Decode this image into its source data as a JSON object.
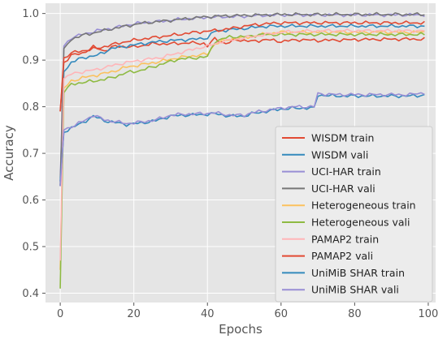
{
  "chart_data": {
    "type": "line",
    "title": "",
    "xlabel": "Epochs",
    "ylabel": "Accuracy",
    "xlim": [
      -4,
      102
    ],
    "ylim": [
      0.38,
      1.022
    ],
    "xticks": [
      "0",
      "20",
      "40",
      "60",
      "80",
      "100"
    ],
    "yticks": [
      "0.4",
      "0.5",
      "0.6",
      "0.7",
      "0.8",
      "0.9",
      "1.0"
    ],
    "grid": true,
    "legend_position": "lower-right",
    "series": [
      {
        "name": "WISDM train",
        "color": "#e24a33",
        "knots": [
          [
            0,
            0.79
          ],
          [
            1,
            0.895
          ],
          [
            3,
            0.91
          ],
          [
            6,
            0.915
          ],
          [
            9,
            0.928
          ],
          [
            12,
            0.92
          ],
          [
            15,
            0.93
          ],
          [
            20,
            0.928
          ],
          [
            25,
            0.935
          ],
          [
            30,
            0.935
          ],
          [
            35,
            0.937
          ],
          [
            39,
            0.936
          ],
          [
            40,
            0.93
          ],
          [
            42,
            0.946
          ],
          [
            45,
            0.935
          ],
          [
            48,
            0.944
          ],
          [
            52,
            0.94
          ],
          [
            56,
            0.944
          ],
          [
            60,
            0.94
          ],
          [
            65,
            0.944
          ],
          [
            70,
            0.942
          ],
          [
            80,
            0.944
          ],
          [
            90,
            0.945
          ],
          [
            99,
            0.945
          ]
        ]
      },
      {
        "name": "WISDM vali",
        "color": "#348abd",
        "knots": [
          [
            0,
            0.63
          ],
          [
            1,
            0.875
          ],
          [
            3,
            0.895
          ],
          [
            6,
            0.905
          ],
          [
            10,
            0.91
          ],
          [
            14,
            0.925
          ],
          [
            18,
            0.93
          ],
          [
            22,
            0.935
          ],
          [
            27,
            0.94
          ],
          [
            32,
            0.943
          ],
          [
            37,
            0.945
          ],
          [
            40,
            0.948
          ],
          [
            42,
            0.962
          ],
          [
            46,
            0.965
          ],
          [
            50,
            0.968
          ],
          [
            55,
            0.972
          ],
          [
            60,
            0.973
          ],
          [
            70,
            0.973
          ],
          [
            80,
            0.973
          ],
          [
            90,
            0.973
          ],
          [
            99,
            0.973
          ]
        ]
      },
      {
        "name": "UCI-HAR train",
        "color": "#988ed5",
        "knots": [
          [
            0,
            0.64
          ],
          [
            1,
            0.93
          ],
          [
            3,
            0.948
          ],
          [
            6,
            0.955
          ],
          [
            10,
            0.963
          ],
          [
            14,
            0.968
          ],
          [
            18,
            0.975
          ],
          [
            22,
            0.98
          ],
          [
            27,
            0.983
          ],
          [
            32,
            0.987
          ],
          [
            37,
            0.99
          ],
          [
            40,
            0.992
          ],
          [
            45,
            0.993
          ],
          [
            50,
            0.994
          ],
          [
            55,
            0.996
          ],
          [
            60,
            0.997
          ],
          [
            70,
            0.997
          ],
          [
            80,
            0.997
          ],
          [
            90,
            0.997
          ],
          [
            99,
            0.997
          ]
        ]
      },
      {
        "name": "UCI-HAR vali",
        "color": "#777777",
        "knots": [
          [
            0,
            0.63
          ],
          [
            1,
            0.925
          ],
          [
            3,
            0.945
          ],
          [
            6,
            0.953
          ],
          [
            10,
            0.96
          ],
          [
            14,
            0.967
          ],
          [
            18,
            0.973
          ],
          [
            22,
            0.979
          ],
          [
            27,
            0.983
          ],
          [
            32,
            0.987
          ],
          [
            37,
            0.991
          ],
          [
            40,
            0.993
          ],
          [
            45,
            0.995
          ],
          [
            50,
            0.996
          ],
          [
            55,
            0.997
          ],
          [
            60,
            0.998
          ],
          [
            70,
            0.998
          ],
          [
            80,
            0.998
          ],
          [
            90,
            0.998
          ],
          [
            99,
            0.998
          ]
        ]
      },
      {
        "name": "Heterogeneous train",
        "color": "#fbc15e",
        "knots": [
          [
            0,
            0.45
          ],
          [
            1,
            0.84
          ],
          [
            3,
            0.855
          ],
          [
            6,
            0.862
          ],
          [
            10,
            0.868
          ],
          [
            14,
            0.875
          ],
          [
            18,
            0.885
          ],
          [
            22,
            0.89
          ],
          [
            27,
            0.897
          ],
          [
            32,
            0.905
          ],
          [
            37,
            0.91
          ],
          [
            40,
            0.913
          ],
          [
            42,
            0.935
          ],
          [
            46,
            0.945
          ],
          [
            50,
            0.948
          ],
          [
            55,
            0.955
          ],
          [
            60,
            0.96
          ],
          [
            70,
            0.96
          ],
          [
            80,
            0.96
          ],
          [
            90,
            0.96
          ],
          [
            99,
            0.96
          ]
        ]
      },
      {
        "name": "Heterogeneous vali",
        "color": "#8eba42",
        "knots": [
          [
            0,
            0.41
          ],
          [
            1,
            0.83
          ],
          [
            3,
            0.848
          ],
          [
            6,
            0.852
          ],
          [
            10,
            0.856
          ],
          [
            14,
            0.862
          ],
          [
            18,
            0.873
          ],
          [
            22,
            0.878
          ],
          [
            27,
            0.89
          ],
          [
            32,
            0.902
          ],
          [
            37,
            0.905
          ],
          [
            40,
            0.907
          ],
          [
            42,
            0.94
          ],
          [
            46,
            0.95
          ],
          [
            50,
            0.95
          ],
          [
            55,
            0.955
          ],
          [
            60,
            0.955
          ],
          [
            70,
            0.955
          ],
          [
            80,
            0.955
          ],
          [
            90,
            0.955
          ],
          [
            99,
            0.955
          ]
        ]
      },
      {
        "name": "PAMAP2 train",
        "color": "#ffb5b8",
        "knots": [
          [
            0,
            0.47
          ],
          [
            1,
            0.86
          ],
          [
            3,
            0.87
          ],
          [
            6,
            0.875
          ],
          [
            10,
            0.88
          ],
          [
            14,
            0.888
          ],
          [
            18,
            0.895
          ],
          [
            22,
            0.9
          ],
          [
            27,
            0.905
          ],
          [
            32,
            0.915
          ],
          [
            37,
            0.925
          ],
          [
            40,
            0.93
          ],
          [
            44,
            0.94
          ],
          [
            48,
            0.945
          ],
          [
            52,
            0.95
          ],
          [
            56,
            0.955
          ],
          [
            60,
            0.96
          ],
          [
            70,
            0.963
          ],
          [
            80,
            0.963
          ],
          [
            90,
            0.963
          ],
          [
            99,
            0.963
          ]
        ]
      },
      {
        "name": "PAMAP2 vali",
        "color": "#e24a33",
        "knots": [
          [
            0,
            0.79
          ],
          [
            1,
            0.905
          ],
          [
            3,
            0.915
          ],
          [
            6,
            0.92
          ],
          [
            10,
            0.925
          ],
          [
            14,
            0.933
          ],
          [
            18,
            0.94
          ],
          [
            22,
            0.945
          ],
          [
            27,
            0.95
          ],
          [
            32,
            0.955
          ],
          [
            37,
            0.96
          ],
          [
            40,
            0.962
          ],
          [
            44,
            0.965
          ],
          [
            48,
            0.97
          ],
          [
            52,
            0.975
          ],
          [
            56,
            0.978
          ],
          [
            60,
            0.98
          ],
          [
            70,
            0.98
          ],
          [
            80,
            0.98
          ],
          [
            90,
            0.98
          ],
          [
            99,
            0.98
          ]
        ]
      },
      {
        "name": "UniMiB SHAR train",
        "color": "#348abd",
        "knots": [
          [
            0,
            0.64
          ],
          [
            1,
            0.745
          ],
          [
            3,
            0.755
          ],
          [
            6,
            0.765
          ],
          [
            9,
            0.78
          ],
          [
            12,
            0.77
          ],
          [
            15,
            0.766
          ],
          [
            18,
            0.762
          ],
          [
            22,
            0.765
          ],
          [
            26,
            0.77
          ],
          [
            30,
            0.78
          ],
          [
            34,
            0.782
          ],
          [
            38,
            0.783
          ],
          [
            42,
            0.785
          ],
          [
            46,
            0.78
          ],
          [
            50,
            0.78
          ],
          [
            52,
            0.785
          ],
          [
            56,
            0.79
          ],
          [
            60,
            0.795
          ],
          [
            64,
            0.797
          ],
          [
            69,
            0.797
          ],
          [
            70,
            0.825
          ],
          [
            75,
            0.823
          ],
          [
            80,
            0.823
          ],
          [
            85,
            0.823
          ],
          [
            90,
            0.823
          ],
          [
            95,
            0.823
          ],
          [
            99,
            0.825
          ]
        ]
      },
      {
        "name": "UniMiB SHAR vali",
        "color": "#988ed5",
        "knots": [
          [
            0,
            0.63
          ],
          [
            1,
            0.75
          ],
          [
            3,
            0.757
          ],
          [
            6,
            0.768
          ],
          [
            9,
            0.782
          ],
          [
            12,
            0.772
          ],
          [
            15,
            0.768
          ],
          [
            18,
            0.764
          ],
          [
            22,
            0.767
          ],
          [
            26,
            0.772
          ],
          [
            30,
            0.782
          ],
          [
            34,
            0.784
          ],
          [
            38,
            0.785
          ],
          [
            42,
            0.787
          ],
          [
            46,
            0.782
          ],
          [
            50,
            0.782
          ],
          [
            52,
            0.787
          ],
          [
            56,
            0.792
          ],
          [
            60,
            0.797
          ],
          [
            64,
            0.8
          ],
          [
            69,
            0.8
          ],
          [
            70,
            0.828
          ],
          [
            75,
            0.826
          ],
          [
            80,
            0.826
          ],
          [
            85,
            0.826
          ],
          [
            90,
            0.826
          ],
          [
            95,
            0.826
          ],
          [
            99,
            0.83
          ]
        ]
      }
    ]
  }
}
